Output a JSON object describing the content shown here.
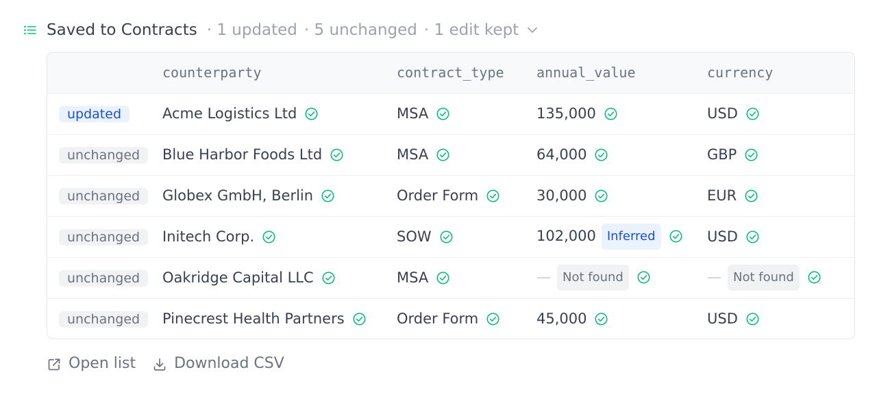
{
  "header": {
    "title": "Saved to Contracts",
    "updated_count": "· 1 updated",
    "unchanged_count": "· 5 unchanged",
    "edits_kept": "· 1 edit kept"
  },
  "table": {
    "columns": [
      "",
      "counterparty",
      "contract_type",
      "annual_value",
      "currency"
    ],
    "rows": [
      {
        "status": "updated",
        "counterparty": "Acme Logistics Ltd",
        "contract_type": "MSA",
        "annual_value": "135,000",
        "currency": "USD"
      },
      {
        "status": "unchanged",
        "counterparty": "Blue Harbor Foods Ltd",
        "contract_type": "MSA",
        "annual_value": "64,000",
        "currency": "GBP"
      },
      {
        "status": "unchanged",
        "counterparty": "Globex GmbH, Berlin",
        "contract_type": "Order Form",
        "annual_value": "30,000",
        "currency": "EUR"
      },
      {
        "status": "unchanged",
        "counterparty": "Initech Corp.",
        "contract_type": "SOW",
        "annual_value": "102,000",
        "annual_value_tag": "Inferred",
        "currency": "USD"
      },
      {
        "status": "unchanged",
        "counterparty": "Oakridge Capital LLC",
        "contract_type": "MSA",
        "annual_value": "—",
        "annual_value_tag": "Not found",
        "currency": "—",
        "currency_tag": "Not found"
      },
      {
        "status": "unchanged",
        "counterparty": "Pinecrest Health Partners",
        "contract_type": "Order Form",
        "annual_value": "45,000",
        "currency": "USD"
      }
    ]
  },
  "actions": {
    "open_list": "Open list",
    "download_csv": "Download CSV"
  },
  "icons": {
    "list": "list-icon",
    "chevron": "chevron-down-icon",
    "check": "check-circle-icon",
    "external": "external-link-icon",
    "download": "download-icon"
  },
  "colors": {
    "accent_green": "#10b981",
    "accent_blue": "#1d4ed8",
    "muted": "#9ca3af"
  }
}
